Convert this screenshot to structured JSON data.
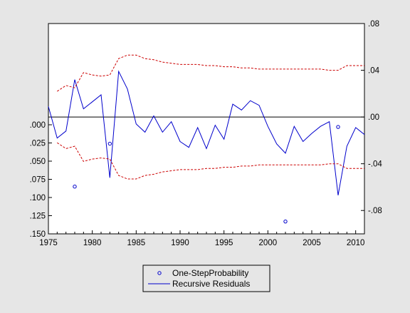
{
  "chart_data": {
    "type": "line",
    "title": "",
    "xlabel": "",
    "x_ticks": [
      "1975",
      "1980",
      "1985",
      "1990",
      "1995",
      "2000",
      "2005",
      "2010"
    ],
    "xlim": [
      1975,
      2011
    ],
    "right_axis": {
      "ylim": [
        -0.1,
        0.08
      ],
      "ticks": [
        ".08",
        ".04",
        ".00",
        "-.04",
        "-.08"
      ],
      "tick_values": [
        0.08,
        0.04,
        0.0,
        -0.04,
        -0.08
      ]
    },
    "left_axis": {
      "ylim": [
        0.15,
        0.0
      ],
      "inverted": true,
      "ticks": [
        ".000",
        ".025",
        ".050",
        ".075",
        ".100",
        ".125",
        ".150"
      ],
      "tick_values": [
        0.0,
        0.025,
        0.05,
        0.075,
        0.1,
        0.125,
        0.15
      ]
    },
    "series": [
      {
        "name": "Recursive Residuals",
        "axis": "right",
        "color": "#0000cc",
        "style": "solid",
        "x": [
          1975,
          1976,
          1977,
          1978,
          1979,
          1980,
          1981,
          1982,
          1983,
          1984,
          1985,
          1986,
          1987,
          1988,
          1989,
          1990,
          1991,
          1992,
          1993,
          1994,
          1995,
          1996,
          1997,
          1998,
          1999,
          2000,
          2001,
          2002,
          2003,
          2004,
          2005,
          2006,
          2007,
          2008,
          2009,
          2010,
          2011
        ],
        "values": [
          0.009,
          -0.018,
          -0.012,
          0.032,
          0.007,
          0.013,
          0.019,
          -0.052,
          0.039,
          0.024,
          -0.006,
          -0.013,
          0.001,
          -0.013,
          -0.004,
          -0.021,
          -0.026,
          -0.009,
          -0.027,
          -0.007,
          -0.019,
          0.011,
          0.006,
          0.014,
          0.01,
          -0.008,
          -0.023,
          -0.031,
          -0.008,
          -0.021,
          -0.014,
          -0.008,
          -0.004,
          -0.067,
          -0.025,
          -0.009,
          -0.015
        ]
      },
      {
        "name": "",
        "axis": "right",
        "color": "#cc0000",
        "style": "dashed",
        "x": [
          1976,
          1977,
          1978,
          1979,
          1980,
          1981,
          1982,
          1983,
          1984,
          1985,
          1986,
          1987,
          1988,
          1989,
          1990,
          1991,
          1992,
          1993,
          1994,
          1995,
          1996,
          1997,
          1998,
          1999,
          2000,
          2001,
          2002,
          2003,
          2004,
          2005,
          2006,
          2007,
          2008,
          2009,
          2010,
          2011
        ],
        "values": [
          0.022,
          0.027,
          0.025,
          0.038,
          0.036,
          0.035,
          0.036,
          0.05,
          0.053,
          0.053,
          0.05,
          0.049,
          0.047,
          0.046,
          0.045,
          0.045,
          0.045,
          0.044,
          0.044,
          0.043,
          0.043,
          0.042,
          0.042,
          0.041,
          0.041,
          0.041,
          0.041,
          0.041,
          0.041,
          0.041,
          0.041,
          0.04,
          0.04,
          0.044,
          0.044,
          0.044
        ]
      },
      {
        "name": "",
        "axis": "right",
        "color": "#cc0000",
        "style": "dashed",
        "x": [
          1976,
          1977,
          1978,
          1979,
          1980,
          1981,
          1982,
          1983,
          1984,
          1985,
          1986,
          1987,
          1988,
          1989,
          1990,
          1991,
          1992,
          1993,
          1994,
          1995,
          1996,
          1997,
          1998,
          1999,
          2000,
          2001,
          2002,
          2003,
          2004,
          2005,
          2006,
          2007,
          2008,
          2009,
          2010,
          2011
        ],
        "values": [
          -0.022,
          -0.027,
          -0.025,
          -0.038,
          -0.036,
          -0.035,
          -0.036,
          -0.05,
          -0.053,
          -0.053,
          -0.05,
          -0.049,
          -0.047,
          -0.046,
          -0.045,
          -0.045,
          -0.045,
          -0.044,
          -0.044,
          -0.043,
          -0.043,
          -0.042,
          -0.042,
          -0.041,
          -0.041,
          -0.041,
          -0.041,
          -0.041,
          -0.041,
          -0.041,
          -0.041,
          -0.04,
          -0.04,
          -0.044,
          -0.044,
          -0.044
        ]
      },
      {
        "name": "One-Step Probability",
        "axis": "left",
        "color": "#0000cc",
        "style": "marker",
        "x": [
          1978,
          1982,
          2002,
          2008
        ],
        "values": [
          0.085,
          0.026,
          0.133,
          0.003
        ]
      }
    ],
    "legend": {
      "position": "bottom-center",
      "entries": [
        "One-StepProbability",
        "Recursive Residuals"
      ]
    },
    "reference_line": {
      "axis": "right",
      "value": 0.0,
      "color": "#000000"
    },
    "grid": false
  }
}
